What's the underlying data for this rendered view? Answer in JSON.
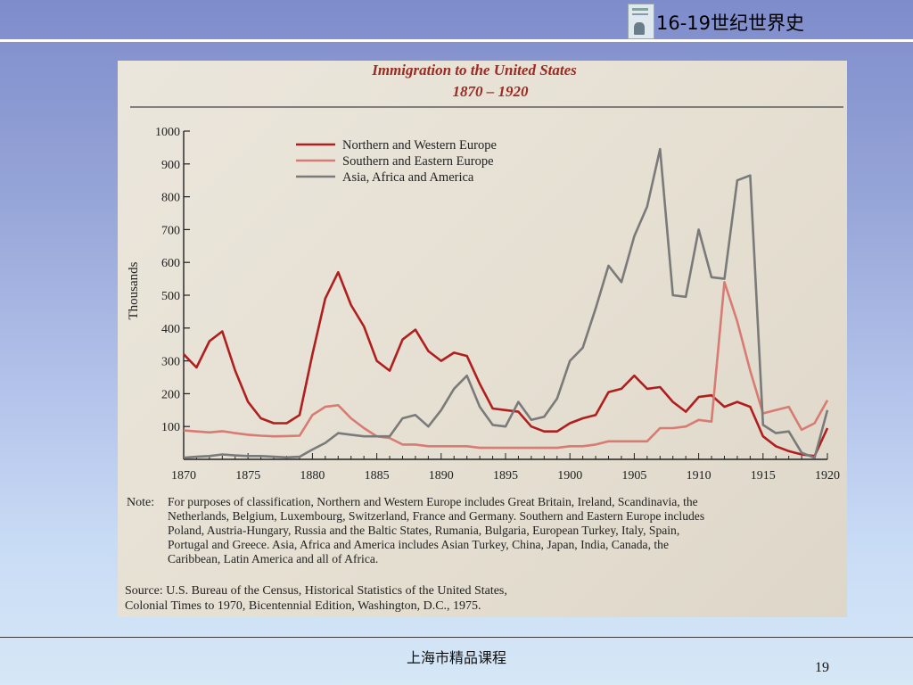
{
  "header": {
    "title": "16-19世纪世界史"
  },
  "footer": {
    "course": "上海市精品课程",
    "page_number": "19"
  },
  "chart_data": {
    "type": "line",
    "title": "Immigration to the United States",
    "subtitle": "1870 – 1920",
    "xlabel": "",
    "ylabel": "Thousands",
    "xlim": [
      1870,
      1920
    ],
    "ylim": [
      0,
      1000
    ],
    "x_ticks": [
      1870,
      1875,
      1880,
      1885,
      1890,
      1895,
      1900,
      1905,
      1910,
      1915,
      1920
    ],
    "y_ticks": [
      100,
      200,
      300,
      400,
      500,
      600,
      700,
      800,
      900,
      1000
    ],
    "legend_position": "top-center",
    "x": [
      1870,
      1871,
      1872,
      1873,
      1874,
      1875,
      1876,
      1877,
      1878,
      1879,
      1880,
      1881,
      1882,
      1883,
      1884,
      1885,
      1886,
      1887,
      1888,
      1889,
      1890,
      1891,
      1892,
      1893,
      1894,
      1895,
      1896,
      1897,
      1898,
      1899,
      1900,
      1901,
      1902,
      1903,
      1904,
      1905,
      1906,
      1907,
      1908,
      1909,
      1910,
      1911,
      1912,
      1913,
      1914,
      1915,
      1916,
      1917,
      1918,
      1919,
      1920
    ],
    "series": [
      {
        "name": "Northern and Western Europe",
        "color": "#b01e1e",
        "values": [
          320,
          280,
          360,
          390,
          270,
          175,
          125,
          110,
          110,
          135,
          320,
          490,
          570,
          470,
          405,
          300,
          270,
          365,
          395,
          330,
          300,
          325,
          315,
          230,
          155,
          150,
          145,
          100,
          85,
          85,
          110,
          125,
          135,
          205,
          215,
          255,
          215,
          220,
          175,
          145,
          190,
          195,
          160,
          175,
          160,
          70,
          40,
          25,
          15,
          10,
          95
        ]
      },
      {
        "name": "Southern and Eastern Europe",
        "color": "#d77b73",
        "values": [
          88,
          85,
          82,
          86,
          80,
          75,
          72,
          70,
          71,
          72,
          135,
          160,
          165,
          125,
          95,
          70,
          65,
          45,
          45,
          40,
          40,
          40,
          40,
          35,
          35,
          35,
          35,
          35,
          35,
          35,
          40,
          40,
          45,
          55,
          55,
          55,
          55,
          95,
          95,
          100,
          120,
          115,
          540,
          420,
          270,
          140,
          150,
          160,
          90,
          110,
          180
        ]
      },
      {
        "name": "Asia, Africa and America",
        "color": "#7a7a7a",
        "values": [
          5,
          8,
          10,
          15,
          12,
          10,
          10,
          8,
          6,
          8,
          30,
          50,
          80,
          75,
          70,
          70,
          70,
          125,
          135,
          100,
          150,
          215,
          255,
          160,
          105,
          100,
          175,
          120,
          130,
          185,
          300,
          340,
          460,
          590,
          540,
          680,
          770,
          945,
          500,
          495,
          700,
          555,
          550,
          850,
          865,
          105,
          80,
          85,
          20,
          5,
          150
        ]
      }
    ]
  },
  "note": {
    "label": "Note:",
    "lines": [
      "For purposes of classification, Northern and Western Europe includes Great Britain, Ireland, Scandinavia, the",
      "Netherlands, Belgium, Luxembourg, Switzerland, France and Germany. Southern and Eastern Europe includes",
      "Poland, Austria-Hungary, Russia and the Baltic States, Rumania, Bulgaria, European Turkey, Italy, Spain,",
      "Portugal and Greece. Asia, Africa and America includes Asian Turkey, China, Japan, India, Canada, the",
      "Caribbean, Latin America and all of Africa."
    ]
  },
  "source": {
    "lines": [
      "Source: U.S. Bureau of the Census, Historical Statistics of the United States,",
      "Colonial Times to 1970, Bicentennial Edition, Washington, D.C., 1975."
    ]
  }
}
